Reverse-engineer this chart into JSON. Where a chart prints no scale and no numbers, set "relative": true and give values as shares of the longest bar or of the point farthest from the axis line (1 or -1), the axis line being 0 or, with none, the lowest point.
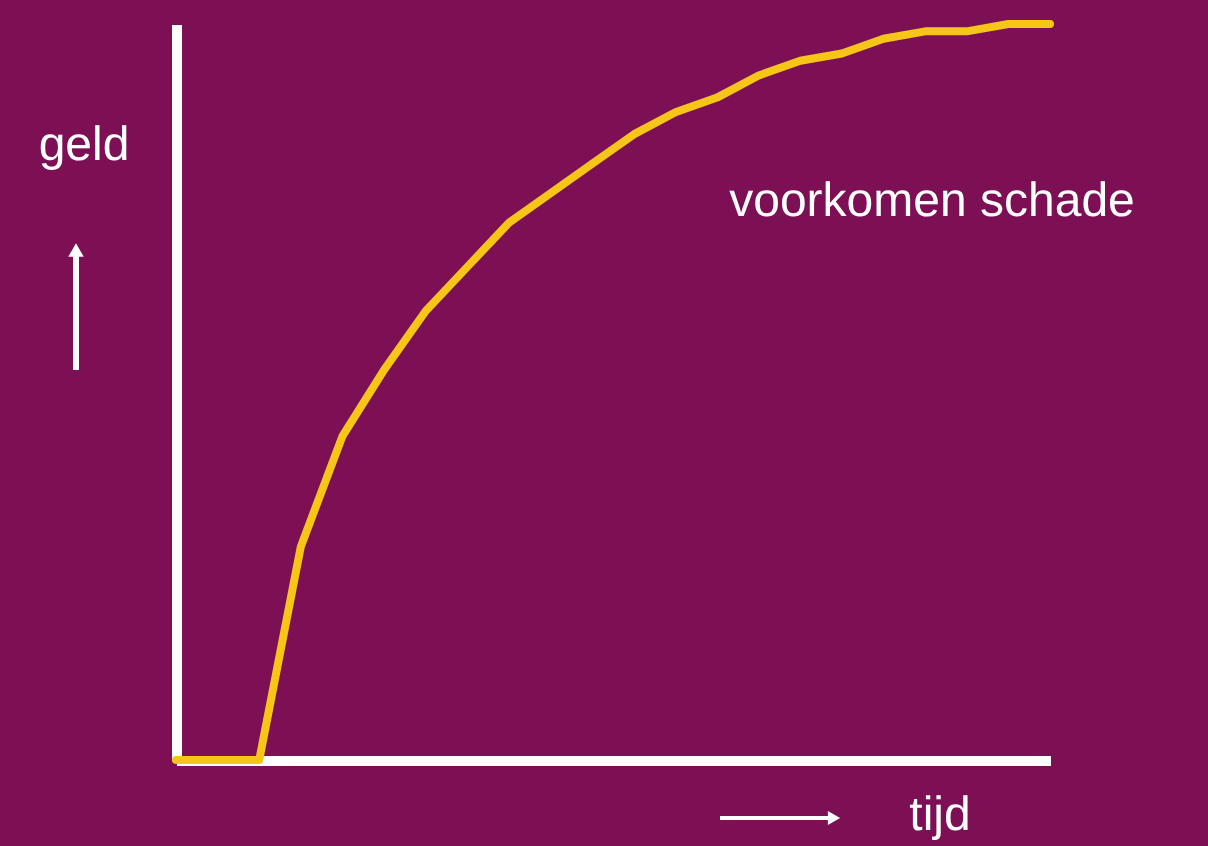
{
  "chart_data": {
    "type": "line",
    "relative": true,
    "xlabel": "tijd",
    "ylabel": "geld",
    "legend": false,
    "grid": false,
    "marker": "none",
    "line_style": "solid",
    "categories": [
      null,
      null,
      null,
      null,
      null,
      null,
      null,
      null,
      null,
      null,
      null,
      null,
      null,
      null,
      null,
      null,
      null,
      null,
      null,
      null,
      null,
      null
    ],
    "series": [
      {
        "name": "voorkomen schade",
        "color": "#f5c518",
        "values": [
          0,
          0,
          0,
          0.29,
          0.44,
          0.53,
          0.61,
          0.67,
          0.73,
          0.77,
          0.81,
          0.85,
          0.88,
          0.9,
          0.93,
          0.95,
          0.96,
          0.98,
          0.99,
          0.99,
          1.0,
          1.0
        ]
      }
    ]
  }
}
